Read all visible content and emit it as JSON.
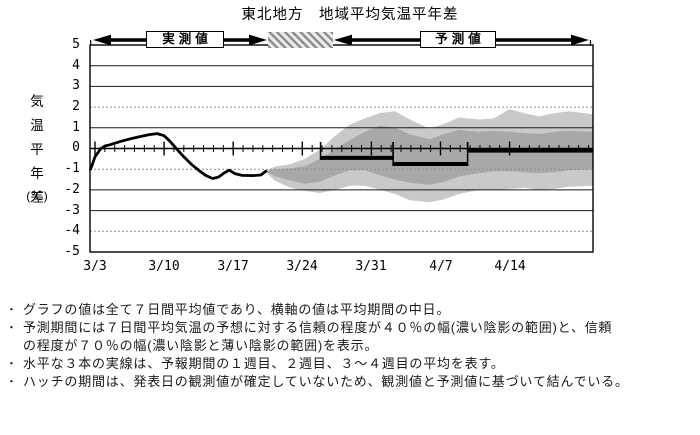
{
  "header": {
    "observed_label": "実測値",
    "forecast_label": "予測値"
  },
  "chart_data": {
    "type": "line",
    "title": "東北地方　地域平均気温平年差",
    "ylabel": "気温平年差",
    "ylabel_unit": "(℃)",
    "ylim": [
      -5,
      5
    ],
    "y_tick_labels": [
      "5",
      "4",
      "3",
      "2",
      "1",
      "0",
      "-1",
      "-2",
      "-3",
      "-4",
      "-5"
    ],
    "y_solid_gridlines": [
      4,
      3,
      1,
      -2,
      -3
    ],
    "y_dotted_gridlines": [
      2,
      -1,
      -4
    ],
    "x_tick_labels": [
      "3/3",
      "3/10",
      "3/17",
      "3/24",
      "3/31",
      "4/7",
      "4/14"
    ],
    "x_tick_days": [
      0,
      7,
      14,
      21,
      28,
      35,
      42
    ],
    "x_minor_tick_every_days": 1,
    "hatch_period_days": [
      17.5,
      24.1
    ],
    "observed_series": {
      "name": "実測値",
      "points": [
        [
          -0.45,
          -1.0
        ],
        [
          0,
          -0.4
        ],
        [
          0.6,
          0.0
        ],
        [
          1.0,
          0.12
        ],
        [
          1.5,
          0.18
        ],
        [
          2.5,
          0.33
        ],
        [
          3.5,
          0.46
        ],
        [
          4.5,
          0.57
        ],
        [
          5.5,
          0.67
        ],
        [
          6.3,
          0.72
        ],
        [
          7,
          0.62
        ],
        [
          7.6,
          0.35
        ],
        [
          8.2,
          0.02
        ],
        [
          9,
          -0.4
        ],
        [
          9.8,
          -0.78
        ],
        [
          10.5,
          -1.05
        ],
        [
          11.2,
          -1.3
        ],
        [
          11.9,
          -1.45
        ],
        [
          12.5,
          -1.38
        ],
        [
          13.1,
          -1.18
        ],
        [
          13.6,
          -1.05
        ],
        [
          14.2,
          -1.22
        ],
        [
          14.9,
          -1.3
        ],
        [
          16,
          -1.31
        ],
        [
          16.8,
          -1.28
        ],
        [
          17.3,
          -1.1
        ]
      ]
    },
    "forecast_weekly_means": [
      {
        "week_label": "1週目",
        "start_day": 22.85,
        "end_day": 30.2,
        "value": -0.45
      },
      {
        "week_label": "2週目",
        "start_day": 30.2,
        "end_day": 37.75,
        "value": -0.75
      },
      {
        "week_label": "3～4週目",
        "start_day": 37.75,
        "end_day": 50.45,
        "value": -0.1
      }
    ],
    "confidence_bands": {
      "band40_label": "信頼の程度が４０％の幅(濃い陰影の範囲)",
      "band70_label": "信頼の程度が７０％の幅(濃い陰影と薄い陰影の範囲)",
      "samples": [
        {
          "day": 17.2,
          "p70_hi": -1.1,
          "p40_hi": -1.1,
          "p40_lo": -1.1,
          "p70_lo": -1.1
        },
        {
          "day": 18.2,
          "p70_hi": -0.88,
          "p40_hi": -1.0,
          "p40_lo": -1.33,
          "p70_lo": -1.55
        },
        {
          "day": 19.8,
          "p70_hi": -0.75,
          "p40_hi": -0.95,
          "p40_lo": -1.55,
          "p70_lo": -1.9
        },
        {
          "day": 21.3,
          "p70_hi": -0.5,
          "p40_hi": -0.85,
          "p40_lo": -1.7,
          "p70_lo": -2.05
        },
        {
          "day": 22.8,
          "p70_hi": -0.05,
          "p40_hi": -0.5,
          "p40_lo": -1.6,
          "p70_lo": -2.15
        },
        {
          "day": 24.3,
          "p70_hi": 0.6,
          "p40_hi": -0.05,
          "p40_lo": -1.3,
          "p70_lo": -2.0
        },
        {
          "day": 25.8,
          "p70_hi": 1.15,
          "p40_hi": 0.4,
          "p40_lo": -1.05,
          "p70_lo": -1.8
        },
        {
          "day": 27.3,
          "p70_hi": 1.45,
          "p40_hi": 0.8,
          "p40_lo": -1.05,
          "p70_lo": -1.8
        },
        {
          "day": 28.9,
          "p70_hi": 1.72,
          "p40_hi": 1.1,
          "p40_lo": -1.3,
          "p70_lo": -2.0
        },
        {
          "day": 30.4,
          "p70_hi": 1.8,
          "p40_hi": 1.0,
          "p40_lo": -1.5,
          "p70_lo": -2.2
        },
        {
          "day": 31.9,
          "p70_hi": 1.4,
          "p40_hi": 0.68,
          "p40_lo": -1.65,
          "p70_lo": -2.5
        },
        {
          "day": 33.9,
          "p70_hi": 0.95,
          "p40_hi": 0.45,
          "p40_lo": -1.75,
          "p70_lo": -2.6
        },
        {
          "day": 35.4,
          "p70_hi": 1.2,
          "p40_hi": 0.7,
          "p40_lo": -1.6,
          "p70_lo": -2.45
        },
        {
          "day": 36.9,
          "p70_hi": 1.5,
          "p40_hi": 0.9,
          "p40_lo": -1.35,
          "p70_lo": -2.2
        },
        {
          "day": 38.9,
          "p70_hi": 1.4,
          "p40_hi": 0.8,
          "p40_lo": -1.2,
          "p70_lo": -2.0
        },
        {
          "day": 40.4,
          "p70_hi": 1.45,
          "p40_hi": 0.85,
          "p40_lo": -1.1,
          "p70_lo": -2.0
        },
        {
          "day": 42,
          "p70_hi": 1.9,
          "p40_hi": 0.8,
          "p40_lo": -1.1,
          "p70_lo": -1.95
        },
        {
          "day": 43.5,
          "p70_hi": 1.7,
          "p40_hi": 0.75,
          "p40_lo": -1.15,
          "p70_lo": -1.9
        },
        {
          "day": 45,
          "p70_hi": 1.55,
          "p40_hi": 0.7,
          "p40_lo": -1.2,
          "p70_lo": -2.0
        },
        {
          "day": 46.5,
          "p70_hi": 1.7,
          "p40_hi": 0.8,
          "p40_lo": -1.15,
          "p70_lo": -1.95
        },
        {
          "day": 48,
          "p70_hi": 1.8,
          "p40_hi": 0.85,
          "p40_lo": -1.05,
          "p70_lo": -1.85
        },
        {
          "day": 50.45,
          "p70_hi": 1.65,
          "p40_hi": 0.8,
          "p40_lo": -1.0,
          "p70_lo": -1.8
        }
      ]
    },
    "colors": {
      "line": "#000000",
      "band40": "#a8a8a8",
      "band70": "#c9c9c9",
      "grid_solid": "#1a1a1a",
      "grid_dotted": "#909090",
      "hatch_stripe": "#8f8f8f"
    }
  },
  "notes": [
    {
      "bullet": "・",
      "text": "グラフの値は全て７日間平均値であり、横軸の値は平均期間の中日。"
    },
    {
      "bullet": "・",
      "text": "予測期間には７日間平均気温の予想に対する信頼の程度が４０％の幅(濃い陰影の範囲)と、信頼"
    },
    {
      "bullet": "",
      "text": "の程度が７０％の幅(濃い陰影と薄い陰影の範囲)を表示。"
    },
    {
      "bullet": "・",
      "text": "水平な３本の実線は、予報期間の１週目、２週目、３～４週目の平均を表す。"
    },
    {
      "bullet": "・",
      "text": "ハッチの期間は、発表日の観測値が確定していないため、観測値と予測値に基づいて結んでいる。"
    }
  ]
}
